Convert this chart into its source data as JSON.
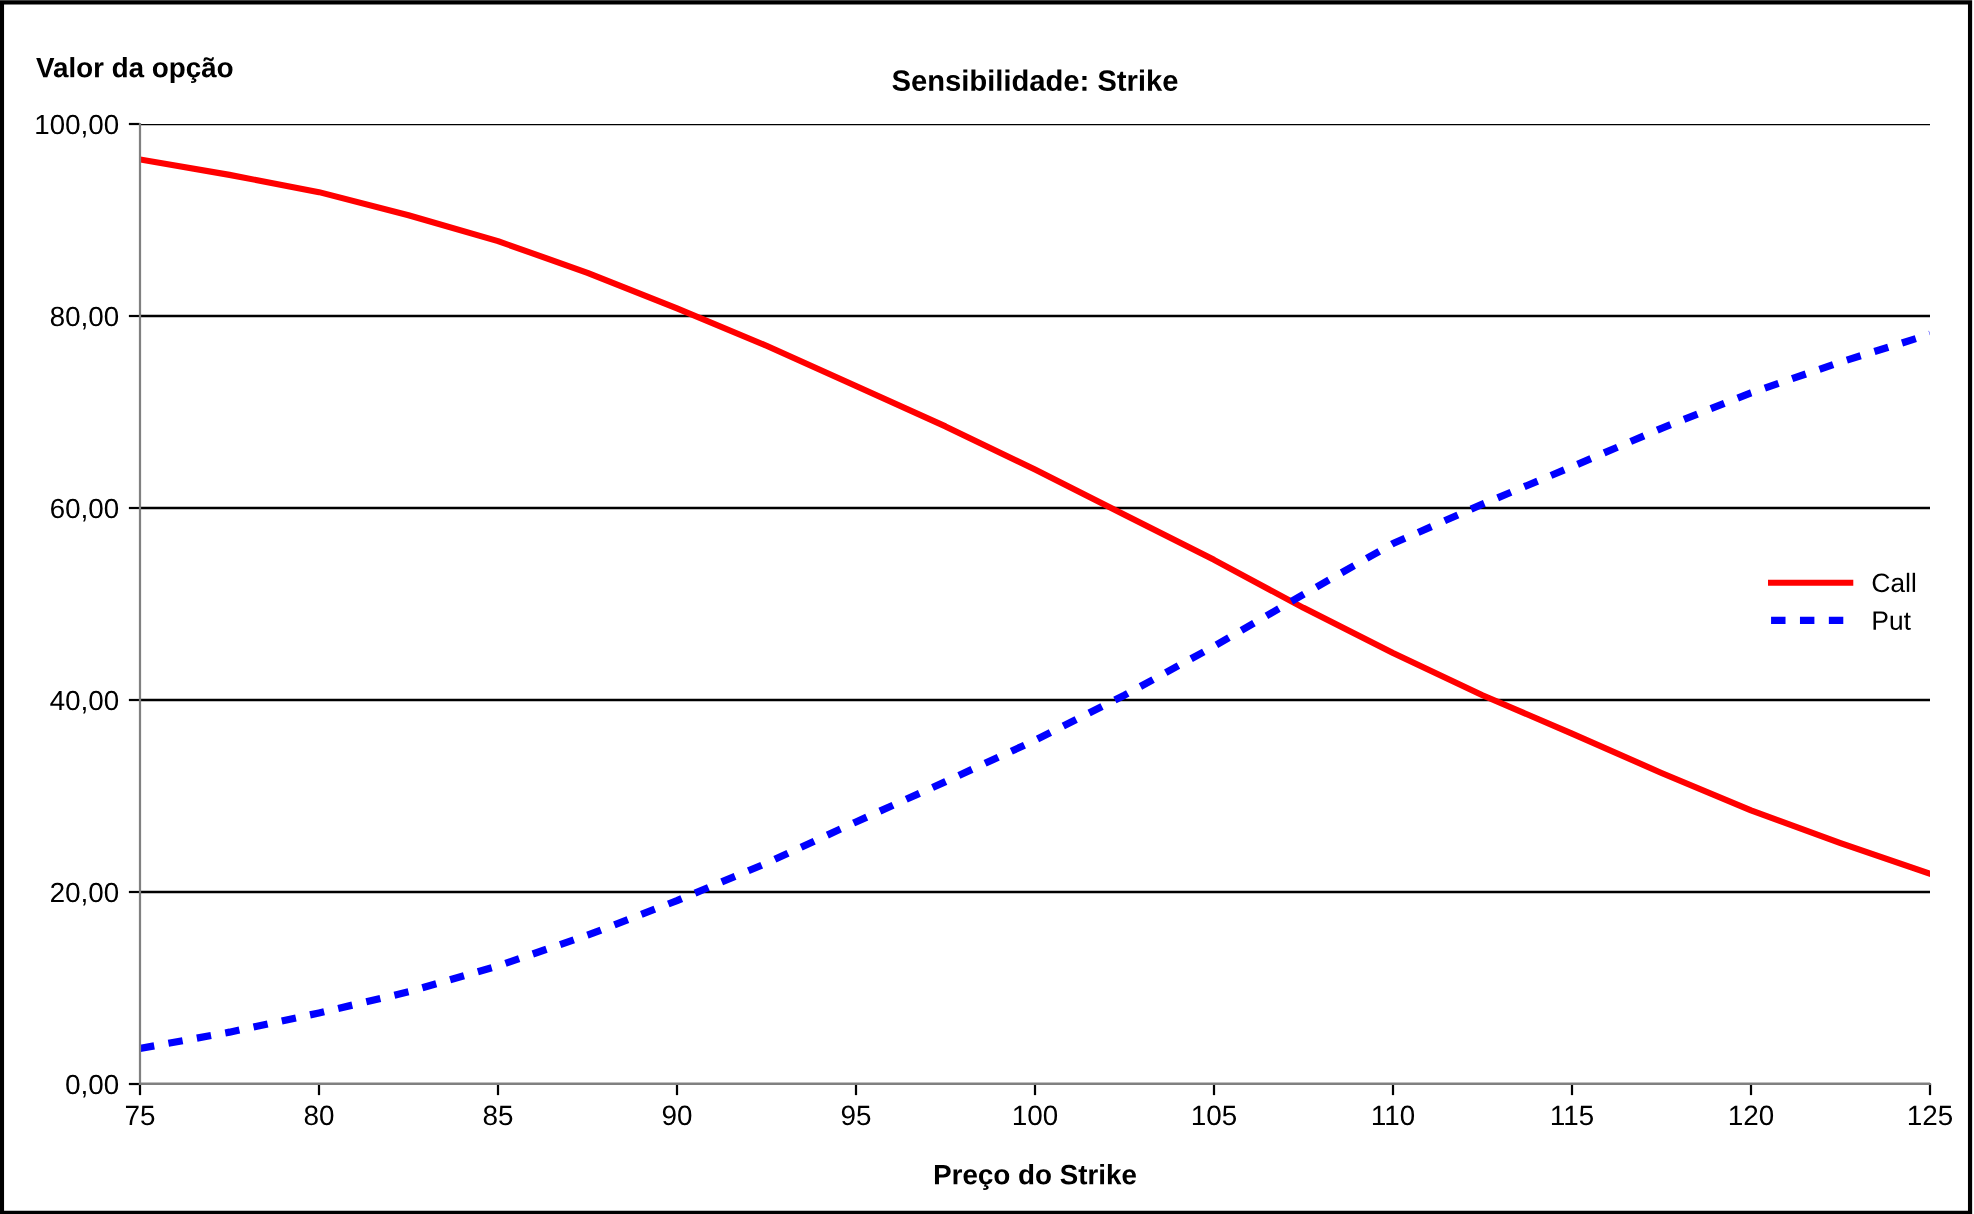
{
  "chart_data": {
    "type": "line",
    "title": "Sensibilidade: Strike",
    "xlabel": "Preço do Strike",
    "ylabel": "Valor da opção",
    "x": [
      75,
      77.5,
      80,
      82.5,
      85,
      87.5,
      90,
      92.5,
      95,
      97.5,
      100,
      102.5,
      105,
      107.5,
      110,
      112.5,
      115,
      117.5,
      120,
      122.5,
      125
    ],
    "series": [
      {
        "name": "Call",
        "color": "#ff0000",
        "line_style": "solid",
        "values": [
          96.3,
          94.7,
          92.9,
          90.5,
          87.8,
          84.5,
          80.8,
          76.9,
          72.7,
          68.5,
          64.0,
          59.3,
          54.6,
          49.6,
          44.9,
          40.5,
          36.5,
          32.4,
          28.5,
          25.1,
          21.9
        ]
      },
      {
        "name": "Put",
        "color": "#0000ff",
        "line_style": "dashed",
        "values": [
          3.7,
          5.4,
          7.4,
          9.6,
          12.3,
          15.5,
          19.1,
          23.0,
          27.3,
          31.5,
          35.8,
          40.5,
          45.6,
          51.0,
          56.3,
          60.4,
          64.3,
          68.3,
          72.0,
          75.2,
          78.1
        ]
      }
    ],
    "xlim": [
      75,
      125
    ],
    "xticks": [
      75,
      80,
      85,
      90,
      95,
      100,
      105,
      110,
      115,
      120,
      125
    ],
    "ylim": [
      0,
      100
    ],
    "yticks": [
      {
        "value": 0,
        "label": "0,00"
      },
      {
        "value": 20,
        "label": "20,00"
      },
      {
        "value": 40,
        "label": "40,00"
      },
      {
        "value": 60,
        "label": "60,00"
      },
      {
        "value": 80,
        "label": "80,00"
      },
      {
        "value": 100,
        "label": "100,00"
      }
    ],
    "grid": "y",
    "legend": "right",
    "marker": "none"
  }
}
